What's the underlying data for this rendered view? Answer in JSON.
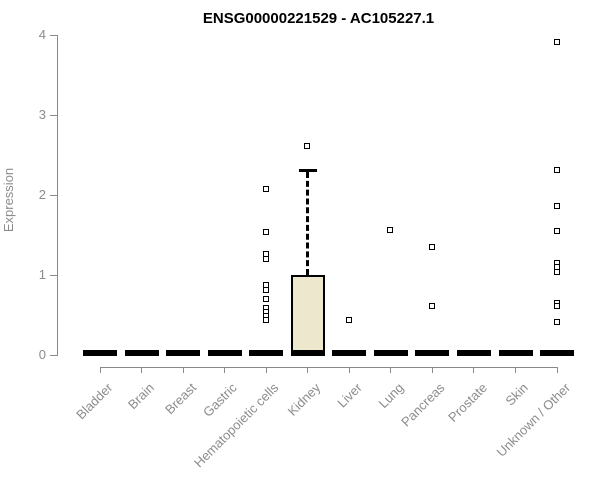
{
  "chart_data": {
    "type": "boxplot",
    "title": "ENSG00000221529 - AC105227.1",
    "ylabel": "Expression",
    "xlabel": "",
    "ylim": [
      0,
      4
    ],
    "yticks": [
      0,
      1,
      2,
      3,
      4
    ],
    "grid": false,
    "legend": "none",
    "categories": [
      "Bladder",
      "Brain",
      "Breast",
      "Gastric",
      "Hematopoietic cells",
      "Kidney",
      "Liver",
      "Lung",
      "Pancreas",
      "Prostate",
      "Skin",
      "Unknown / Other"
    ],
    "boxes": [
      {
        "category": "Bladder",
        "q1": 0,
        "median": 0,
        "q3": 0,
        "whisker_low": 0,
        "whisker_high": 0,
        "outliers": []
      },
      {
        "category": "Brain",
        "q1": 0,
        "median": 0,
        "q3": 0,
        "whisker_low": 0,
        "whisker_high": 0,
        "outliers": []
      },
      {
        "category": "Breast",
        "q1": 0,
        "median": 0,
        "q3": 0,
        "whisker_low": 0,
        "whisker_high": 0,
        "outliers": []
      },
      {
        "category": "Gastric",
        "q1": 0,
        "median": 0,
        "q3": 0,
        "whisker_low": 0,
        "whisker_high": 0,
        "outliers": []
      },
      {
        "category": "Hematopoietic cells",
        "q1": 0,
        "median": 0,
        "q3": 0,
        "whisker_low": 0,
        "whisker_high": 0,
        "outliers": [
          2.07,
          1.53,
          1.26,
          1.19,
          0.87,
          0.81,
          0.7,
          0.58,
          0.53,
          0.48,
          0.43
        ]
      },
      {
        "category": "Kidney",
        "q1": 0,
        "median": 0,
        "q3": 1.0,
        "whisker_low": 0,
        "whisker_high": 2.31,
        "outliers": [
          2.61
        ]
      },
      {
        "category": "Liver",
        "q1": 0,
        "median": 0,
        "q3": 0,
        "whisker_low": 0,
        "whisker_high": 0,
        "outliers": [
          0.43
        ]
      },
      {
        "category": "Lung",
        "q1": 0,
        "median": 0,
        "q3": 0,
        "whisker_low": 0,
        "whisker_high": 0,
        "outliers": [
          1.56
        ]
      },
      {
        "category": "Pancreas",
        "q1": 0,
        "median": 0,
        "q3": 0,
        "whisker_low": 0,
        "whisker_high": 0,
        "outliers": [
          1.35,
          0.61
        ]
      },
      {
        "category": "Prostate",
        "q1": 0,
        "median": 0,
        "q3": 0,
        "whisker_low": 0,
        "whisker_high": 0,
        "outliers": []
      },
      {
        "category": "Skin",
        "q1": 0,
        "median": 0,
        "q3": 0,
        "whisker_low": 0,
        "whisker_high": 0,
        "outliers": []
      },
      {
        "category": "Unknown / Other",
        "q1": 0,
        "median": 0,
        "q3": 0,
        "whisker_low": 0,
        "whisker_high": 0,
        "outliers": [
          3.91,
          2.31,
          1.86,
          1.55,
          1.15,
          1.09,
          1.03,
          0.64,
          0.61,
          0.41
        ]
      }
    ],
    "colors": {
      "box_fill": "#EDE7CE",
      "box_border": "#000000",
      "median_line": "#000000",
      "whisker": "#000000",
      "outlier_border": "#000000",
      "outlier_fill": "#FFFFFF",
      "axis": "#8A8A8A",
      "tick_label": "#8C8C8C",
      "title": "#000000"
    }
  }
}
